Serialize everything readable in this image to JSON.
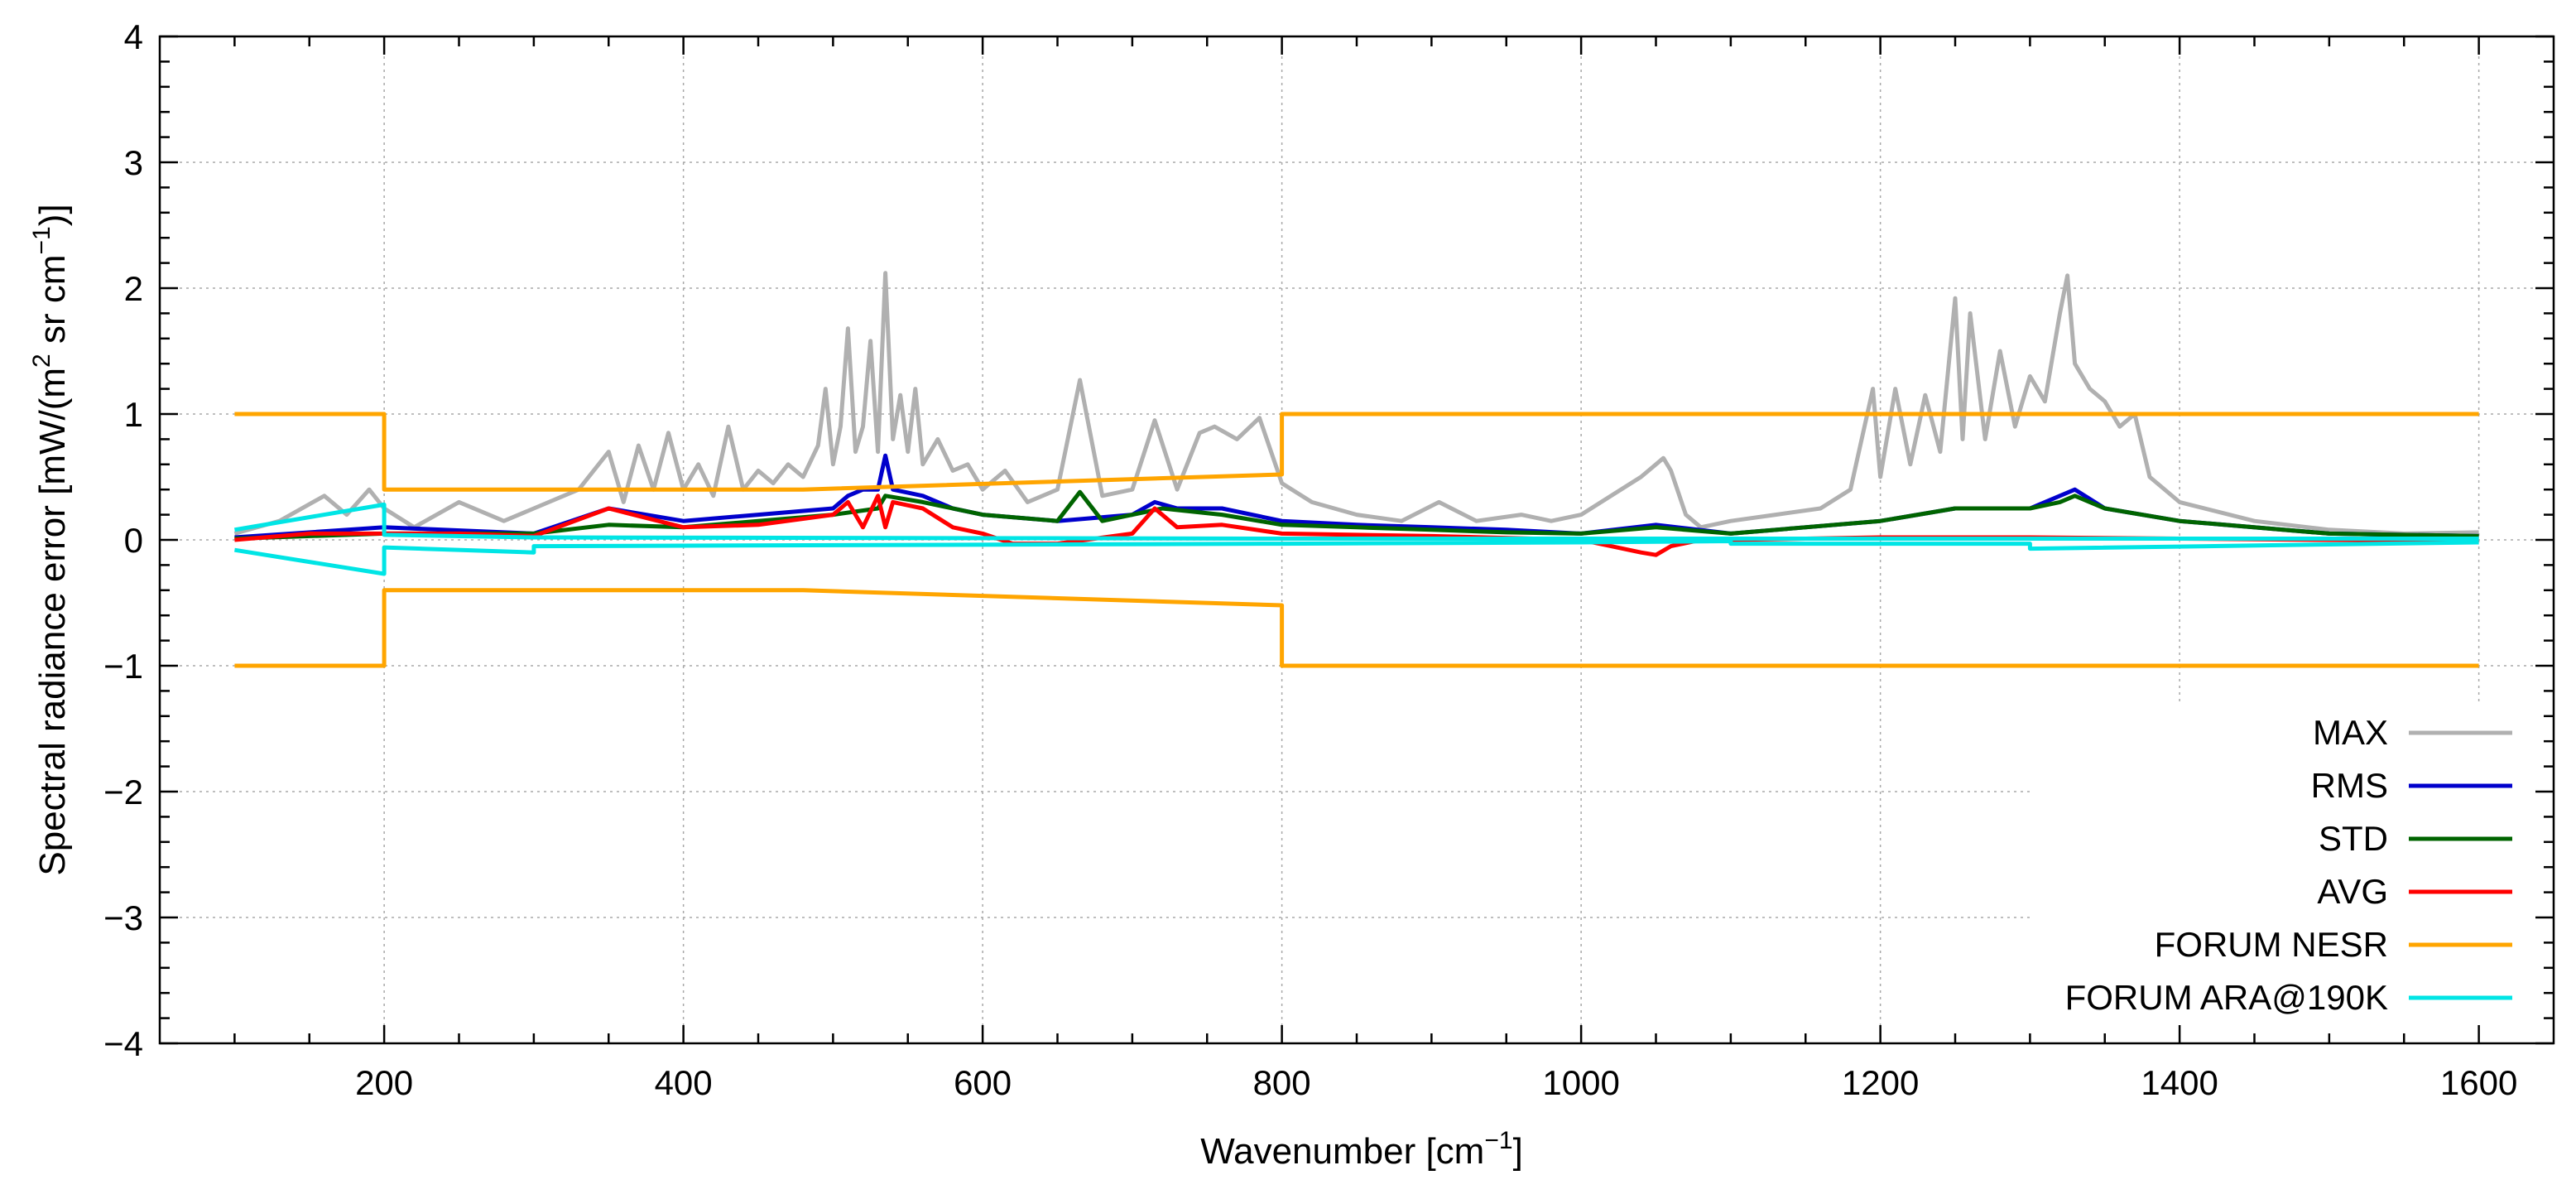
{
  "chart_data": {
    "type": "line",
    "title": "",
    "xlabel": "Wavenumber [cm",
    "xlabel_sup": "−1",
    "xlabel_end": "]",
    "ylabel_parts": [
      "Spectral radiance error [mW/(m",
      "2",
      " sr cm",
      "−1",
      ")]"
    ],
    "xlim": [
      50,
      1650
    ],
    "ylim": [
      -4,
      4
    ],
    "xticks": [
      200,
      400,
      600,
      800,
      1000,
      1200,
      1400,
      1600
    ],
    "xtick_labels": [
      "200",
      "400",
      "600",
      "800",
      "1000",
      "1200",
      "1400",
      "1600"
    ],
    "yticks": [
      -4,
      -3,
      -2,
      -1,
      0,
      1,
      2,
      3,
      4
    ],
    "ytick_labels": [
      "−4",
      "−3",
      "−2",
      "−1",
      "0",
      "1",
      "2",
      "3",
      "4"
    ],
    "grid": true,
    "legend_position": "bottom-right",
    "series": [
      {
        "name": "MAX",
        "color": "#b0b0b0",
        "x": [
          100,
          130,
          160,
          175,
          190,
          200,
          220,
          250,
          280,
          300,
          330,
          350,
          360,
          370,
          380,
          390,
          400,
          410,
          420,
          430,
          440,
          450,
          460,
          470,
          480,
          490,
          495,
          500,
          505,
          510,
          515,
          520,
          525,
          530,
          535,
          540,
          545,
          550,
          555,
          560,
          570,
          580,
          590,
          600,
          615,
          630,
          650,
          665,
          680,
          700,
          715,
          730,
          745,
          755,
          770,
          785,
          800,
          820,
          850,
          880,
          905,
          930,
          960,
          980,
          1000,
          1020,
          1040,
          1050,
          1055,
          1060,
          1070,
          1080,
          1100,
          1130,
          1160,
          1180,
          1195,
          1200,
          1210,
          1220,
          1230,
          1240,
          1250,
          1255,
          1260,
          1270,
          1280,
          1290,
          1300,
          1310,
          1320,
          1325,
          1330,
          1340,
          1350,
          1360,
          1370,
          1380,
          1400,
          1450,
          1500,
          1550,
          1600
        ],
        "values": [
          0.05,
          0.15,
          0.35,
          0.2,
          0.4,
          0.25,
          0.1,
          0.3,
          0.15,
          0.25,
          0.4,
          0.7,
          0.3,
          0.75,
          0.4,
          0.85,
          0.4,
          0.6,
          0.35,
          0.9,
          0.4,
          0.55,
          0.45,
          0.6,
          0.5,
          0.75,
          1.2,
          0.6,
          0.9,
          1.68,
          0.7,
          0.9,
          1.58,
          0.7,
          2.12,
          0.8,
          1.15,
          0.7,
          1.2,
          0.6,
          0.8,
          0.55,
          0.6,
          0.4,
          0.55,
          0.3,
          0.4,
          1.27,
          0.35,
          0.4,
          0.95,
          0.4,
          0.85,
          0.9,
          0.8,
          0.97,
          0.45,
          0.3,
          0.2,
          0.15,
          0.3,
          0.15,
          0.2,
          0.15,
          0.2,
          0.35,
          0.5,
          0.6,
          0.65,
          0.55,
          0.2,
          0.1,
          0.15,
          0.2,
          0.25,
          0.4,
          1.2,
          0.5,
          1.2,
          0.6,
          1.15,
          0.7,
          1.92,
          0.8,
          1.8,
          0.8,
          1.5,
          0.9,
          1.3,
          1.1,
          1.8,
          2.1,
          1.4,
          1.2,
          1.1,
          0.9,
          1.0,
          0.5,
          0.3,
          0.15,
          0.08,
          0.05,
          0.06
        ]
      },
      {
        "name": "RMS",
        "color": "#0000cc",
        "x": [
          100,
          200,
          300,
          350,
          400,
          450,
          500,
          510,
          520,
          530,
          535,
          540,
          560,
          580,
          600,
          650,
          700,
          715,
          730,
          760,
          800,
          850,
          900,
          950,
          1000,
          1050,
          1100,
          1200,
          1250,
          1300,
          1320,
          1330,
          1350,
          1400,
          1500,
          1600
        ],
        "values": [
          0.02,
          0.1,
          0.05,
          0.25,
          0.15,
          0.2,
          0.25,
          0.35,
          0.4,
          0.4,
          0.67,
          0.4,
          0.35,
          0.25,
          0.2,
          0.15,
          0.2,
          0.3,
          0.25,
          0.25,
          0.15,
          0.12,
          0.1,
          0.08,
          0.05,
          0.12,
          0.05,
          0.15,
          0.25,
          0.25,
          0.35,
          0.4,
          0.25,
          0.15,
          0.05,
          0.03
        ]
      },
      {
        "name": "STD",
        "color": "#006400",
        "x": [
          100,
          200,
          300,
          350,
          400,
          450,
          500,
          530,
          535,
          560,
          600,
          650,
          665,
          680,
          720,
          760,
          800,
          850,
          900,
          950,
          1000,
          1050,
          1100,
          1200,
          1250,
          1300,
          1320,
          1330,
          1350,
          1400,
          1500,
          1600
        ],
        "values": [
          0.01,
          0.05,
          0.05,
          0.12,
          0.1,
          0.15,
          0.2,
          0.25,
          0.35,
          0.3,
          0.2,
          0.15,
          0.38,
          0.15,
          0.25,
          0.2,
          0.12,
          0.1,
          0.08,
          0.06,
          0.05,
          0.1,
          0.05,
          0.15,
          0.25,
          0.25,
          0.3,
          0.35,
          0.25,
          0.15,
          0.05,
          0.03
        ]
      },
      {
        "name": "AVG",
        "color": "#ff0000",
        "x": [
          100,
          150,
          200,
          250,
          300,
          350,
          400,
          450,
          500,
          510,
          520,
          530,
          535,
          540,
          560,
          580,
          600,
          620,
          650,
          700,
          715,
          730,
          760,
          800,
          900,
          1000,
          1020,
          1040,
          1050,
          1060,
          1080,
          1100,
          1200,
          1300,
          1400,
          1500,
          1600
        ],
        "values": [
          0.0,
          0.05,
          0.05,
          0.05,
          0.03,
          0.25,
          0.1,
          0.12,
          0.2,
          0.3,
          0.1,
          0.35,
          0.1,
          0.3,
          0.25,
          0.1,
          0.05,
          -0.03,
          -0.03,
          0.05,
          0.25,
          0.1,
          0.12,
          0.05,
          0.03,
          0.0,
          -0.05,
          -0.1,
          -0.12,
          -0.05,
          0.0,
          0.0,
          0.02,
          0.02,
          0.01,
          0.0,
          0.0
        ]
      },
      {
        "name": "FORUM NESR",
        "color": "#ffa500",
        "x": [
          100,
          200,
          200,
          480,
          800,
          800,
          1600
        ],
        "values": [
          1.0,
          1.0,
          0.4,
          0.4,
          0.52,
          1.0,
          1.0
        ],
        "mirrored": true
      },
      {
        "name": "FORUM ARA@190K",
        "color": "#00e5e5",
        "x": [
          100,
          200,
          200,
          300,
          300,
          800,
          1000,
          1100,
          1100,
          1300,
          1300,
          1600
        ],
        "values": [
          0.08,
          0.28,
          0.04,
          0.02,
          0.02,
          0.01,
          0.01,
          0.01,
          0.01,
          0.01,
          0.01,
          0.01
        ],
        "lower_values": [
          -0.08,
          -0.27,
          -0.06,
          -0.1,
          -0.05,
          -0.03,
          -0.02,
          -0.01,
          -0.03,
          -0.03,
          -0.07,
          -0.02
        ]
      }
    ]
  }
}
